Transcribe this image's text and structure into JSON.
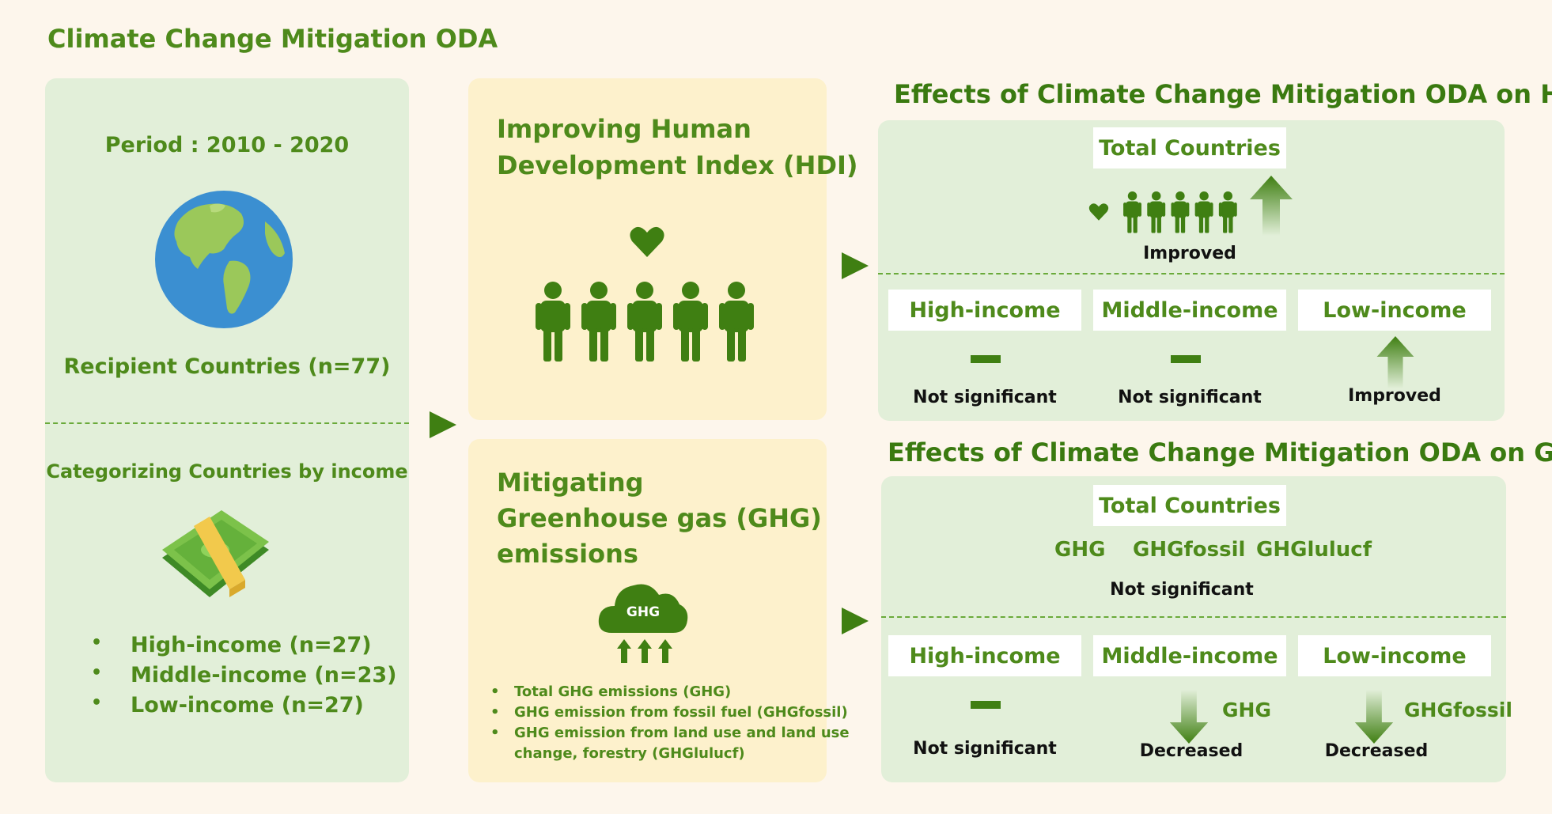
{
  "title": "Climate Change Mitigation ODA",
  "left": {
    "period": "Period : 2010 - 2020",
    "recipients": "Recipient Countries (n=77)",
    "categorizing": "Categorizing Countries by income",
    "groups": [
      "High-income (n=27)",
      "Middle-income (n=23)",
      "Low-income (n=27)"
    ]
  },
  "middle": {
    "hdi_title_line1": "Improving Human",
    "hdi_title_line2": "Development Index (HDI)",
    "ghg_title_line1": "Mitigating",
    "ghg_title_line2": "Greenhouse gas (GHG)",
    "ghg_title_line3": "emissions",
    "cloud_label": "GHG",
    "ghg_items": [
      "Total GHG emissions (GHG)",
      "GHG emission from fossil fuel (GHGfossil)",
      "GHG emission from land use and land use",
      "change, forestry (GHGlulucf)"
    ]
  },
  "hdi_effects": {
    "title": "Effects of Climate Change Mitigation ODA on HDI",
    "total": "Total Countries",
    "total_result": "Improved",
    "groups": [
      {
        "label": "High-income",
        "result": "Not significant"
      },
      {
        "label": "Middle-income",
        "result": "Not significant"
      },
      {
        "label": "Low-income",
        "result": "Improved"
      }
    ]
  },
  "ghg_effects": {
    "title": "Effects of Climate Change Mitigation ODA on GHG",
    "total": "Total Countries",
    "vars": [
      "GHG",
      "GHGfossil",
      "GHGlulucf"
    ],
    "total_result": "Not significant",
    "groups": [
      {
        "label": "High-income",
        "result": "Not significant",
        "var": ""
      },
      {
        "label": "Middle-income",
        "result": "Decreased",
        "var": "GHG"
      },
      {
        "label": "Low-income",
        "result": "Decreased",
        "var": "GHGfossil"
      }
    ]
  },
  "colors": {
    "accent": "#4e8a1b",
    "panel_green": "#e2efd9",
    "panel_yellow": "#fdf1cc",
    "icon": "#3f7f12",
    "background": "#fdf6ec"
  }
}
